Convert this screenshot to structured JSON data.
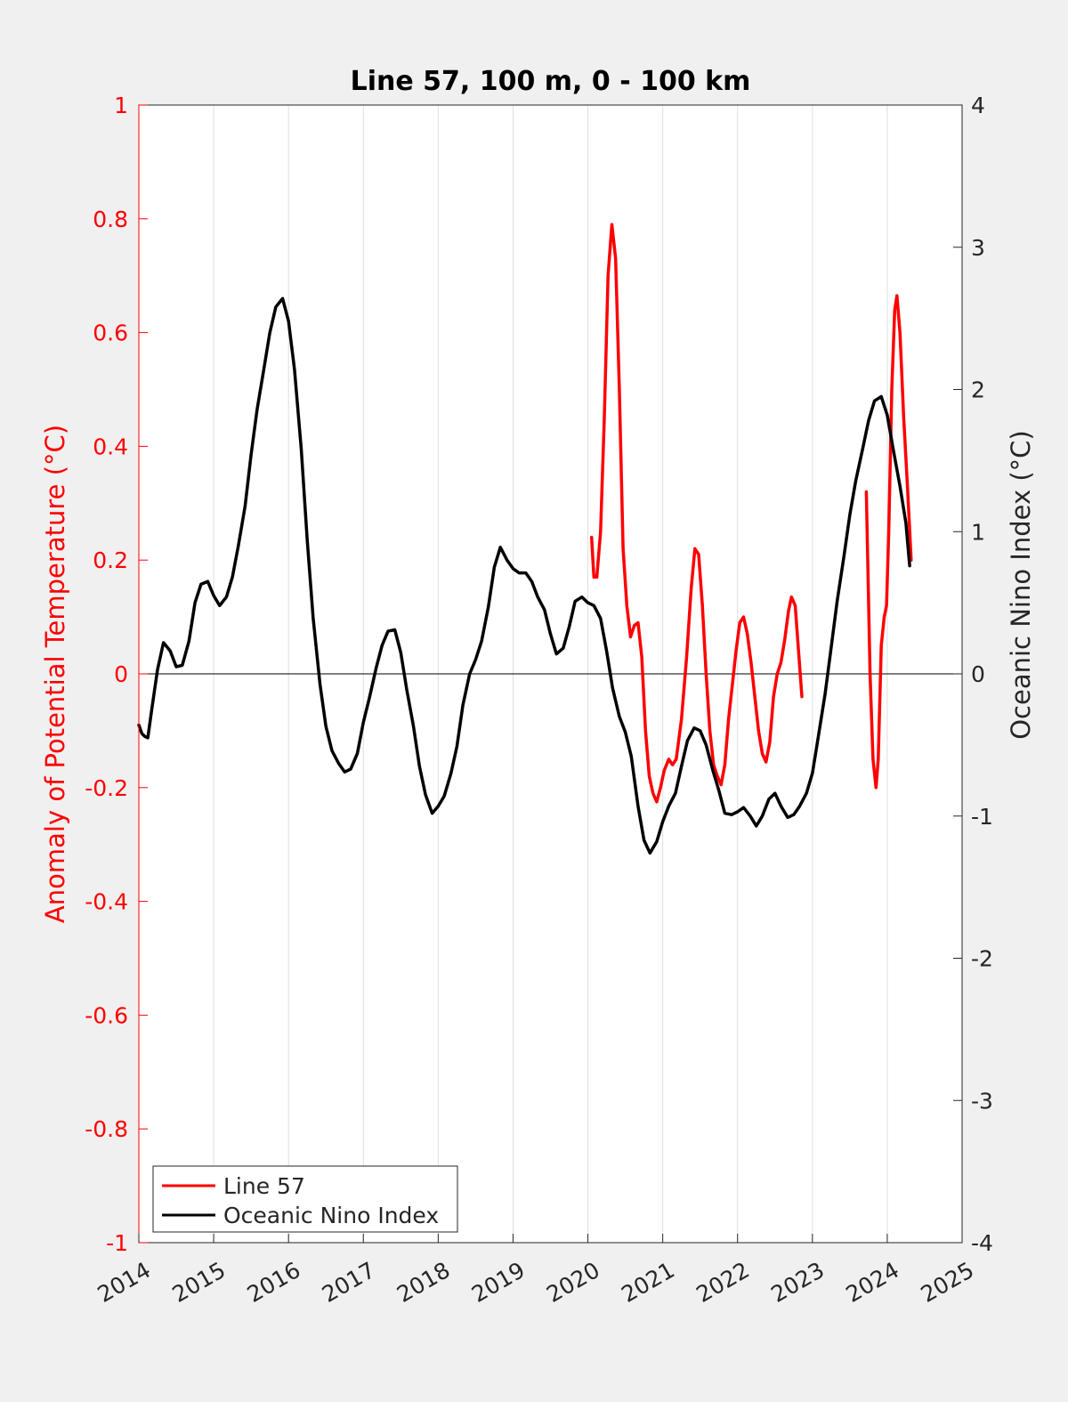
{
  "chart_data": {
    "type": "line",
    "title": "Line 57, 100 m, 0 - 100 km",
    "xlabel": "",
    "ylabel": "Anomaly of Potential Temperature (°C)",
    "ylabel_right": "Oceanic Nino Index (°C)",
    "xlim": [
      2014,
      2025
    ],
    "ylim": [
      -1,
      1
    ],
    "ylim_right": [
      -4,
      4
    ],
    "x_ticks": [
      "2014",
      "2015",
      "2016",
      "2017",
      "2018",
      "2019",
      "2020",
      "2021",
      "2022",
      "2023",
      "2024",
      "2025"
    ],
    "y_ticks": [
      "-1",
      "-0.8",
      "-0.6",
      "-0.4",
      "-0.2",
      "0",
      "0.2",
      "0.4",
      "0.6",
      "0.8",
      "1"
    ],
    "y_ticks_right": [
      "-4",
      "-3",
      "-2",
      "-1",
      "0",
      "1",
      "2",
      "3",
      "4"
    ],
    "grid": "vertical",
    "legend_position": "bottom-left",
    "colors": {
      "left_axis": "#ff0000",
      "line57": "#ff0000",
      "oni": "#000000",
      "background": "#f0f0f0",
      "plot": "#ffffff"
    },
    "series": [
      {
        "name": "Line 57",
        "axis": "left",
        "color": "#ff0000",
        "segments": [
          [
            [
              2020.05,
              0.24
            ],
            [
              2020.08,
              0.17
            ],
            [
              2020.12,
              0.17
            ],
            [
              2020.17,
              0.25
            ],
            [
              2020.22,
              0.45
            ],
            [
              2020.27,
              0.7
            ],
            [
              2020.32,
              0.79
            ],
            [
              2020.37,
              0.73
            ],
            [
              2020.42,
              0.5
            ],
            [
              2020.47,
              0.22
            ],
            [
              2020.52,
              0.12
            ],
            [
              2020.57,
              0.065
            ],
            [
              2020.62,
              0.085
            ],
            [
              2020.67,
              0.09
            ],
            [
              2020.72,
              0.03
            ],
            [
              2020.77,
              -0.1
            ],
            [
              2020.82,
              -0.18
            ],
            [
              2020.87,
              -0.21
            ],
            [
              2020.92,
              -0.225
            ],
            [
              2020.97,
              -0.2
            ],
            [
              2021.02,
              -0.17
            ],
            [
              2021.08,
              -0.15
            ],
            [
              2021.13,
              -0.16
            ],
            [
              2021.18,
              -0.15
            ],
            [
              2021.25,
              -0.08
            ],
            [
              2021.32,
              0.03
            ],
            [
              2021.38,
              0.15
            ],
            [
              2021.43,
              0.22
            ],
            [
              2021.48,
              0.21
            ],
            [
              2021.53,
              0.12
            ],
            [
              2021.58,
              0.0
            ],
            [
              2021.63,
              -0.1
            ],
            [
              2021.68,
              -0.16
            ],
            [
              2021.73,
              -0.18
            ],
            [
              2021.78,
              -0.195
            ],
            [
              2021.83,
              -0.16
            ],
            [
              2021.88,
              -0.08
            ],
            [
              2021.93,
              -0.02
            ],
            [
              2021.98,
              0.04
            ],
            [
              2022.03,
              0.09
            ],
            [
              2022.08,
              0.1
            ],
            [
              2022.13,
              0.07
            ],
            [
              2022.18,
              0.02
            ],
            [
              2022.23,
              -0.04
            ],
            [
              2022.28,
              -0.1
            ],
            [
              2022.33,
              -0.14
            ],
            [
              2022.38,
              -0.155
            ],
            [
              2022.43,
              -0.12
            ],
            [
              2022.48,
              -0.04
            ],
            [
              2022.53,
              0.0
            ],
            [
              2022.58,
              0.02
            ],
            [
              2022.63,
              0.06
            ],
            [
              2022.68,
              0.11
            ],
            [
              2022.72,
              0.135
            ],
            [
              2022.77,
              0.12
            ],
            [
              2022.82,
              0.03
            ],
            [
              2022.86,
              -0.04
            ]
          ],
          [
            [
              2023.72,
              0.32
            ],
            [
              2023.77,
              0.0
            ],
            [
              2023.81,
              -0.15
            ],
            [
              2023.85,
              -0.2
            ],
            [
              2023.88,
              -0.15
            ],
            [
              2023.92,
              0.05
            ],
            [
              2023.96,
              0.1
            ],
            [
              2023.99,
              0.12
            ],
            [
              2024.02,
              0.25
            ],
            [
              2024.06,
              0.5
            ],
            [
              2024.1,
              0.64
            ],
            [
              2024.13,
              0.665
            ],
            [
              2024.17,
              0.6
            ],
            [
              2024.22,
              0.45
            ],
            [
              2024.27,
              0.33
            ],
            [
              2024.32,
              0.2
            ]
          ]
        ]
      },
      {
        "name": "Oceanic Nino Index",
        "axis": "right",
        "color": "#000000",
        "segments": [
          [
            [
              2014.0,
              -0.36
            ],
            [
              2014.04,
              -0.42
            ],
            [
              2014.08,
              -0.44
            ],
            [
              2014.12,
              -0.45
            ],
            [
              2014.17,
              -0.26
            ],
            [
              2014.25,
              0.03
            ],
            [
              2014.33,
              0.22
            ],
            [
              2014.42,
              0.16
            ],
            [
              2014.5,
              0.05
            ],
            [
              2014.58,
              0.06
            ],
            [
              2014.67,
              0.23
            ],
            [
              2014.75,
              0.5
            ],
            [
              2014.83,
              0.63
            ],
            [
              2014.92,
              0.65
            ],
            [
              2015.0,
              0.55
            ],
            [
              2015.08,
              0.48
            ],
            [
              2015.17,
              0.54
            ],
            [
              2015.25,
              0.68
            ],
            [
              2015.33,
              0.9
            ],
            [
              2015.42,
              1.18
            ],
            [
              2015.5,
              1.54
            ],
            [
              2015.58,
              1.86
            ],
            [
              2015.67,
              2.14
            ],
            [
              2015.75,
              2.4
            ],
            [
              2015.83,
              2.58
            ],
            [
              2015.92,
              2.64
            ],
            [
              2016.0,
              2.48
            ],
            [
              2016.08,
              2.14
            ],
            [
              2016.17,
              1.58
            ],
            [
              2016.25,
              0.94
            ],
            [
              2016.33,
              0.39
            ],
            [
              2016.42,
              -0.07
            ],
            [
              2016.5,
              -0.37
            ],
            [
              2016.58,
              -0.54
            ],
            [
              2016.67,
              -0.63
            ],
            [
              2016.75,
              -0.69
            ],
            [
              2016.83,
              -0.67
            ],
            [
              2016.92,
              -0.56
            ],
            [
              2017.0,
              -0.34
            ],
            [
              2017.08,
              -0.17
            ],
            [
              2017.17,
              0.04
            ],
            [
              2017.25,
              0.2
            ],
            [
              2017.33,
              0.3
            ],
            [
              2017.42,
              0.31
            ],
            [
              2017.5,
              0.15
            ],
            [
              2017.58,
              -0.11
            ],
            [
              2017.67,
              -0.37
            ],
            [
              2017.75,
              -0.65
            ],
            [
              2017.83,
              -0.85
            ],
            [
              2017.92,
              -0.98
            ],
            [
              2018.0,
              -0.93
            ],
            [
              2018.08,
              -0.86
            ],
            [
              2018.17,
              -0.7
            ],
            [
              2018.25,
              -0.51
            ],
            [
              2018.33,
              -0.22
            ],
            [
              2018.42,
              0.0
            ],
            [
              2018.5,
              0.1
            ],
            [
              2018.58,
              0.23
            ],
            [
              2018.67,
              0.47
            ],
            [
              2018.75,
              0.75
            ],
            [
              2018.83,
              0.89
            ],
            [
              2018.92,
              0.8
            ],
            [
              2019.0,
              0.74
            ],
            [
              2019.08,
              0.71
            ],
            [
              2019.17,
              0.71
            ],
            [
              2019.25,
              0.65
            ],
            [
              2019.33,
              0.54
            ],
            [
              2019.42,
              0.45
            ],
            [
              2019.5,
              0.28
            ],
            [
              2019.58,
              0.14
            ],
            [
              2019.67,
              0.18
            ],
            [
              2019.75,
              0.33
            ],
            [
              2019.83,
              0.51
            ],
            [
              2019.92,
              0.54
            ],
            [
              2020.0,
              0.5
            ],
            [
              2020.08,
              0.48
            ],
            [
              2020.17,
              0.39
            ],
            [
              2020.25,
              0.16
            ],
            [
              2020.33,
              -0.1
            ],
            [
              2020.42,
              -0.3
            ],
            [
              2020.5,
              -0.41
            ],
            [
              2020.58,
              -0.58
            ],
            [
              2020.67,
              -0.93
            ],
            [
              2020.75,
              -1.17
            ],
            [
              2020.83,
              -1.26
            ],
            [
              2020.92,
              -1.18
            ],
            [
              2021.0,
              -1.04
            ],
            [
              2021.08,
              -0.93
            ],
            [
              2021.17,
              -0.84
            ],
            [
              2021.25,
              -0.65
            ],
            [
              2021.33,
              -0.47
            ],
            [
              2021.42,
              -0.38
            ],
            [
              2021.5,
              -0.4
            ],
            [
              2021.58,
              -0.5
            ],
            [
              2021.67,
              -0.68
            ],
            [
              2021.75,
              -0.82
            ],
            [
              2021.83,
              -0.98
            ],
            [
              2021.92,
              -0.99
            ],
            [
              2022.0,
              -0.97
            ],
            [
              2022.08,
              -0.94
            ],
            [
              2022.17,
              -1.0
            ],
            [
              2022.25,
              -1.07
            ],
            [
              2022.33,
              -1.0
            ],
            [
              2022.42,
              -0.88
            ],
            [
              2022.5,
              -0.84
            ],
            [
              2022.58,
              -0.93
            ],
            [
              2022.67,
              -1.01
            ],
            [
              2022.75,
              -0.99
            ],
            [
              2022.83,
              -0.93
            ],
            [
              2022.92,
              -0.84
            ],
            [
              2023.0,
              -0.7
            ],
            [
              2023.08,
              -0.44
            ],
            [
              2023.17,
              -0.14
            ],
            [
              2023.25,
              0.18
            ],
            [
              2023.33,
              0.51
            ],
            [
              2023.42,
              0.82
            ],
            [
              2023.5,
              1.12
            ],
            [
              2023.58,
              1.36
            ],
            [
              2023.67,
              1.58
            ],
            [
              2023.75,
              1.78
            ],
            [
              2023.83,
              1.92
            ],
            [
              2023.92,
              1.95
            ],
            [
              2024.0,
              1.82
            ],
            [
              2024.08,
              1.58
            ],
            [
              2024.17,
              1.32
            ],
            [
              2024.25,
              1.06
            ],
            [
              2024.3,
              0.76
            ]
          ]
        ]
      }
    ]
  }
}
